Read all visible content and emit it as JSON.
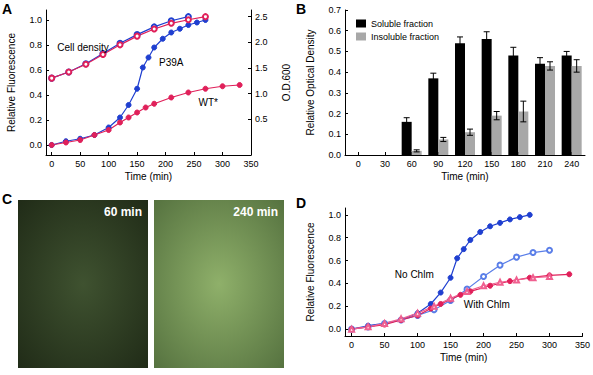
{
  "chart_data": [
    {
      "type": "line",
      "title": "A",
      "xlabel": "Time (min)",
      "ylabel": "Relative Fluorescence",
      "y2label": "O.D.600",
      "xlim": [
        -10,
        350
      ],
      "xticks": [
        0,
        50,
        100,
        150,
        200,
        250,
        300,
        350
      ],
      "ylim": [
        -0.08,
        1.08
      ],
      "yticks": [
        {
          "value": 0,
          "label": "0.0"
        },
        0.2,
        0.4,
        0.6,
        0.8,
        {
          "value": 1,
          "label": "1.0"
        }
      ],
      "y2lim": [
        -0.2,
        2.63
      ],
      "y2ticks": [
        0.5,
        {
          "value": 1,
          "label": "1.0"
        },
        1.5,
        {
          "value": 2,
          "label": "2.0"
        },
        2.5
      ],
      "grid": false,
      "series": [
        {
          "color": "#1f3fd0",
          "marker": "circle",
          "x": [
            0,
            25,
            50,
            75,
            100,
            120,
            135,
            150,
            160,
            170,
            180,
            195,
            210,
            225,
            240,
            255,
            270
          ],
          "values": [
            0,
            0.03,
            0.05,
            0.08,
            0.14,
            0.22,
            0.32,
            0.45,
            0.62,
            0.7,
            0.78,
            0.85,
            0.9,
            0.93,
            0.96,
            0.98,
            1.0
          ]
        },
        {
          "color": "#e0205a",
          "marker": "circle",
          "x": [
            0,
            25,
            50,
            75,
            100,
            120,
            135,
            150,
            165,
            180,
            210,
            240,
            270,
            300,
            330
          ],
          "values": [
            0,
            0.02,
            0.04,
            0.08,
            0.12,
            0.18,
            0.22,
            0.26,
            0.3,
            0.33,
            0.38,
            0.42,
            0.45,
            0.47,
            0.48
          ]
        },
        {
          "color": "#1f3fd0",
          "marker": "open_circle",
          "axis": "y2",
          "x": [
            0,
            30,
            60,
            90,
            120,
            150,
            180,
            210,
            240
          ],
          "values": [
            1.3,
            1.42,
            1.58,
            1.78,
            1.98,
            2.15,
            2.3,
            2.42,
            2.5
          ]
        },
        {
          "color": "#e0205a",
          "marker": "open_circle",
          "axis": "y2",
          "x": [
            0,
            30,
            60,
            90,
            120,
            150,
            180,
            210,
            240,
            270
          ],
          "values": [
            1.3,
            1.42,
            1.57,
            1.76,
            1.95,
            2.12,
            2.26,
            2.37,
            2.44,
            2.5
          ]
        }
      ],
      "annotations": [
        {
          "text": "Cell density",
          "x": 55,
          "y": 0.78
        },
        {
          "text": "P39A",
          "x": 210,
          "y": 0.66
        },
        {
          "text": "WT*",
          "x": 275,
          "y": 0.34
        }
      ]
    },
    {
      "type": "bar",
      "title": "B",
      "xlabel": "Time (min)",
      "ylabel": "Relative Optical Density",
      "categories": [
        "0",
        "30",
        "60",
        "90",
        "120",
        "150",
        "180",
        "210",
        "240"
      ],
      "ylim": [
        0,
        0.7
      ],
      "yticks": [
        {
          "value": 0,
          "label": "0.0"
        },
        0.1,
        0.2,
        0.3,
        0.4,
        0.5,
        0.6,
        0.7
      ],
      "grid": false,
      "legend": "upper left",
      "series": [
        {
          "name": "Soluble fraction",
          "color": "#000000",
          "values": [
            0,
            0,
            0.16,
            0.37,
            0.54,
            0.56,
            0.48,
            0.44,
            0.48
          ],
          "errors": [
            null,
            null,
            0.02,
            0.025,
            0.03,
            0.035,
            0.04,
            0.03,
            0.02
          ]
        },
        {
          "name": "Insoluble fraction",
          "color": "#a8a8a8",
          "values": [
            0,
            0,
            0.02,
            0.075,
            0.11,
            0.19,
            0.21,
            0.43,
            0.43
          ],
          "errors": [
            null,
            null,
            0.005,
            0.01,
            0.015,
            0.02,
            0.05,
            0.02,
            0.03
          ]
        }
      ]
    },
    {
      "type": "image",
      "title": "C",
      "images": [
        {
          "label": "60 min"
        },
        {
          "label": "240 min"
        }
      ]
    },
    {
      "type": "line",
      "title": "D",
      "xlabel": "Time (min)",
      "ylabel": "Relative Fluorescence",
      "xlim": [
        -10,
        350
      ],
      "xticks": [
        0,
        50,
        100,
        150,
        200,
        250,
        300,
        350
      ],
      "ylim": [
        -0.06,
        1.06
      ],
      "yticks": [
        {
          "value": 0,
          "label": "0.0"
        },
        0.2,
        0.4,
        0.6,
        0.8,
        {
          "value": 1,
          "label": "1.0"
        }
      ],
      "grid": false,
      "series": [
        {
          "color": "#1f3fd0",
          "marker": "circle",
          "x": [
            0,
            25,
            50,
            75,
            100,
            120,
            135,
            150,
            160,
            170,
            180,
            195,
            210,
            225,
            240,
            255,
            270
          ],
          "values": [
            0,
            0.03,
            0.05,
            0.08,
            0.14,
            0.22,
            0.32,
            0.45,
            0.62,
            0.7,
            0.78,
            0.85,
            0.9,
            0.93,
            0.96,
            0.98,
            1.0
          ]
        },
        {
          "color": "#5a7ee8",
          "marker": "open_circle",
          "x": [
            0,
            25,
            50,
            75,
            100,
            125,
            150,
            175,
            200,
            225,
            250,
            275,
            300
          ],
          "values": [
            0,
            0.02,
            0.05,
            0.08,
            0.12,
            0.17,
            0.25,
            0.35,
            0.46,
            0.56,
            0.63,
            0.67,
            0.69
          ]
        },
        {
          "color": "#e0205a",
          "marker": "circle",
          "x": [
            0,
            25,
            50,
            75,
            100,
            120,
            135,
            150,
            165,
            180,
            210,
            240,
            270,
            300,
            330
          ],
          "values": [
            0,
            0.02,
            0.04,
            0.08,
            0.12,
            0.18,
            0.22,
            0.26,
            0.3,
            0.33,
            0.38,
            0.42,
            0.45,
            0.47,
            0.48
          ]
        },
        {
          "color": "#f06090",
          "marker": "open_triangle",
          "x": [
            0,
            25,
            50,
            75,
            100,
            125,
            150,
            175,
            200,
            225,
            250,
            275,
            300
          ],
          "values": [
            0,
            0.02,
            0.05,
            0.09,
            0.14,
            0.2,
            0.27,
            0.33,
            0.38,
            0.41,
            0.43,
            0.45,
            0.46
          ]
        }
      ],
      "annotations": [
        {
          "text": "No Chlm",
          "x": 95,
          "y": 0.48
        },
        {
          "text": "With Chlm",
          "x": 205,
          "y": 0.22
        }
      ]
    }
  ]
}
